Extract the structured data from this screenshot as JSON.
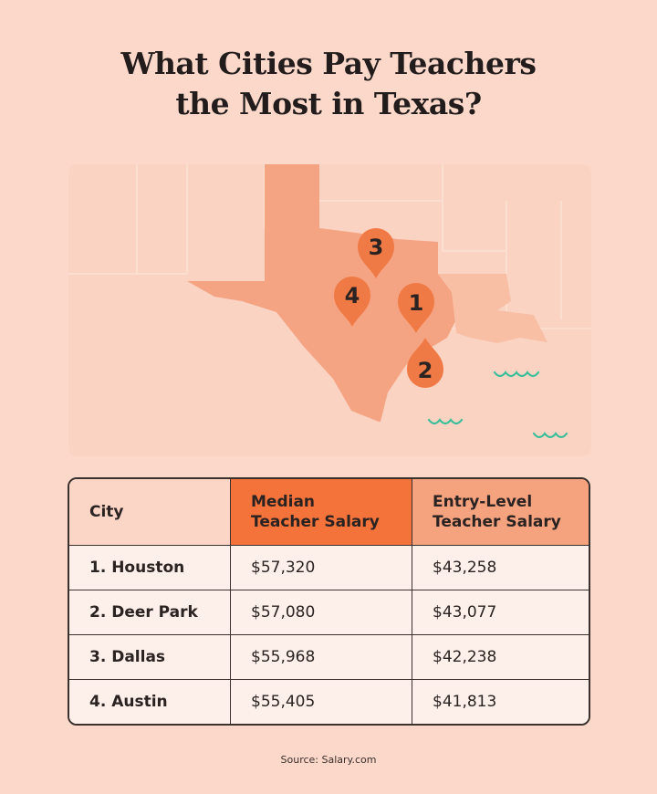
{
  "title": {
    "line1": "What Cities Pay Teachers",
    "line2": "the Most in Texas?"
  },
  "map": {
    "pins": [
      {
        "label": "3",
        "city": "Dallas"
      },
      {
        "label": "4",
        "city": "Austin"
      },
      {
        "label": "1",
        "city": "Houston"
      },
      {
        "label": "2",
        "city": "Deer Park"
      }
    ],
    "colors": {
      "background": "#fad3c2",
      "texas": "#f5a483",
      "pin": "#f07a45",
      "wave": "#3bbf9b"
    }
  },
  "table": {
    "headers": [
      "City",
      "Median Teacher Salary",
      "Entry-Level Teacher Salary"
    ],
    "header_lines": [
      [
        "City"
      ],
      [
        "Median",
        "Teacher Salary"
      ],
      [
        "Entry-Level",
        "Teacher Salary"
      ]
    ],
    "rows": [
      [
        "1. Houston",
        "$57,320",
        "$43,258"
      ],
      [
        "2. Deer Park",
        "$57,080",
        "$43,077"
      ],
      [
        "3. Dallas",
        "$55,968",
        "$42,238"
      ],
      [
        "4. Austin",
        "$55,405",
        "$41,813"
      ]
    ]
  },
  "source": "Source: Salary.com"
}
